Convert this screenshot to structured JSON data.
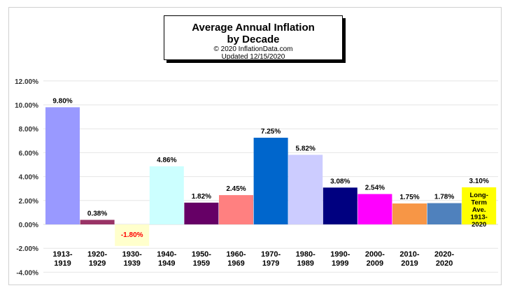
{
  "title": {
    "line1": "Average Annual Inflation",
    "line2": "by Decade",
    "copyright": "© 2020  InflationData.com",
    "updated": "Updated   12/15/2020"
  },
  "chart_data": {
    "type": "bar",
    "title": "Average Annual Inflation by Decade",
    "xlabel": "",
    "ylabel": "",
    "ylim": [
      -4,
      12
    ],
    "yticks": [
      12,
      10,
      8,
      6,
      4,
      2,
      0,
      -2,
      -4
    ],
    "ytick_labels": [
      "12.00%",
      "10.00%",
      "8.00%",
      "6.00%",
      "4.00%",
      "2.00%",
      "0.00%",
      "-2.00%",
      "-4.00%"
    ],
    "grid": true,
    "legend": "none",
    "categories": [
      [
        "1913-",
        "1919"
      ],
      [
        "1920-",
        "1929"
      ],
      [
        "1930-",
        "1939"
      ],
      [
        "1940-",
        "1949"
      ],
      [
        "1950-",
        "1959"
      ],
      [
        "1960-",
        "1969"
      ],
      [
        "1970-",
        "1979"
      ],
      [
        "1980-",
        "1989"
      ],
      [
        "1990-",
        "1999"
      ],
      [
        "2000-",
        "2009"
      ],
      [
        "2010-",
        "2019"
      ],
      [
        "2020-",
        "2020"
      ],
      [
        "",
        ""
      ]
    ],
    "values": [
      9.8,
      0.38,
      -1.8,
      4.86,
      1.82,
      2.45,
      7.25,
      5.82,
      3.08,
      2.54,
      1.75,
      1.78,
      3.1
    ],
    "data_labels": [
      "9.80%",
      "0.38%",
      "-1.80%",
      "4.86%",
      "1.82%",
      "2.45%",
      "7.25%",
      "5.82%",
      "3.08%",
      "2.54%",
      "1.75%",
      "1.78%",
      "3.10%"
    ],
    "colors": [
      "#9999ff",
      "#993366",
      "#ffffcc",
      "#ccffff",
      "#660066",
      "#ff8080",
      "#0066cc",
      "#ccccff",
      "#000080",
      "#ff00ff",
      "#f79646",
      "#4f81bd",
      "#ffff00"
    ],
    "label_colors": [
      "#000000",
      "#000000",
      "#ff0000",
      "#000000",
      "#000000",
      "#000000",
      "#000000",
      "#000000",
      "#000000",
      "#000000",
      "#000000",
      "#000000",
      "#000000"
    ],
    "inside_label": {
      "index": 12,
      "lines": [
        "Long-",
        "Term",
        "Ave.",
        "1913-",
        "2020"
      ]
    }
  }
}
